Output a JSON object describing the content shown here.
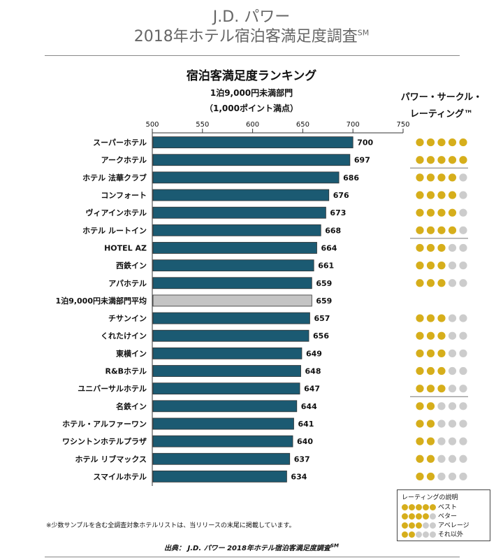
{
  "header": {
    "brand": "J.D. パワー",
    "title": "2018年ホテル宿泊客満足度調査",
    "title_mark": "SM"
  },
  "chart_data": {
    "type": "bar",
    "title": "宿泊客満足度ランキング",
    "subtitle1": "1泊9,000円未満部門",
    "subtitle2": "（1,000ポイント満点）",
    "xlim": [
      500,
      750
    ],
    "ticks": [
      500,
      550,
      600,
      650,
      700,
      750
    ],
    "categories": [
      "スーパーホテル",
      "アークホテル",
      "ホテル 法華クラブ",
      "コンフォート",
      "ヴィアインホテル",
      "ホテル ルートイン",
      "HOTEL AZ",
      "西鉄イン",
      "アパホテル",
      "1泊9,000円未満部門平均",
      "チサンイン",
      "くれたけイン",
      "東横イン",
      "R&Bホテル",
      "ユニバーサルホテル",
      "名鉄イン",
      "ホテル・アルファーワン",
      "ワシントンホテルプラザ",
      "ホテル リブマックス",
      "スマイルホテル"
    ],
    "values": [
      700,
      697,
      686,
      676,
      673,
      668,
      664,
      661,
      659,
      659,
      657,
      656,
      649,
      648,
      647,
      644,
      641,
      640,
      637,
      634
    ],
    "ratings": [
      5,
      5,
      4,
      4,
      4,
      4,
      3,
      3,
      3,
      null,
      3,
      3,
      3,
      3,
      3,
      2,
      2,
      2,
      2,
      2
    ],
    "average_index": 9,
    "group_separators_after": [
      1,
      5,
      14
    ],
    "colors": {
      "bar": "#1b5a72",
      "average_bar": "#c4c4c4",
      "dot_on": "#d6ae1b",
      "dot_off": "#cccccc"
    }
  },
  "pcr_header": {
    "line1": "パワー・サークル・",
    "line2": "レーティング™"
  },
  "legend": {
    "title": "レーティングの説明",
    "items": [
      {
        "dots": 5,
        "label": "ベスト"
      },
      {
        "dots": 4,
        "label": "ベター"
      },
      {
        "dots": 3,
        "label": "アベレージ"
      },
      {
        "dots": 2,
        "label": "それ以外"
      }
    ]
  },
  "footnote": "※少数サンプルを含む全調査対象ホテルリストは、当リリースの末尾に掲載しています。",
  "source": "出典： J.D. パワー 2018年ホテル宿泊客満足度調査",
  "source_mark": "SM"
}
